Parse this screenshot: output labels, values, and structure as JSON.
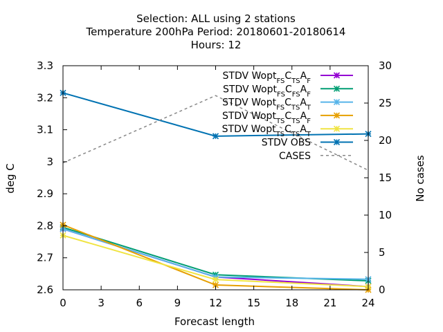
{
  "title_lines": [
    "Selection: ALL using     2 stations",
    "Temperature 200hPa    Period: 20180601-20180614",
    "Hours:  12"
  ],
  "chart_data": {
    "type": "line",
    "xlabel": "Forecast length",
    "ylabel": "deg C",
    "y2label": "No cases",
    "xlim": [
      0,
      24
    ],
    "ylim": [
      2.6,
      3.3
    ],
    "y2lim": [
      0,
      30
    ],
    "x_ticks": [
      0,
      3,
      6,
      9,
      12,
      15,
      18,
      21,
      24
    ],
    "y_ticks": [
      "2.6",
      "2.7",
      "2.8",
      "2.9",
      "3",
      "3.1",
      "3.2",
      "3.3"
    ],
    "y2_ticks": [
      "0",
      "5",
      "10",
      "15",
      "20",
      "25",
      "30"
    ],
    "grid": false,
    "legend_position": "top-right",
    "x": [
      0,
      12,
      24
    ],
    "series": [
      {
        "label_parts": [
          {
            "t": "STDV Wopt",
            "s": false
          },
          {
            "t": "FS",
            "s": true
          },
          {
            "t": "C",
            "s": false
          },
          {
            "t": "TS",
            "s": true
          },
          {
            "t": "A",
            "s": false
          },
          {
            "t": "F",
            "s": true
          }
        ],
        "color": "#9400d3",
        "axis": "y",
        "values": [
          2.79,
          2.64,
          2.61
        ]
      },
      {
        "label_parts": [
          {
            "t": "STDV Wopt",
            "s": false
          },
          {
            "t": "FS",
            "s": true
          },
          {
            "t": "C",
            "s": false
          },
          {
            "t": "FS",
            "s": true
          },
          {
            "t": "A",
            "s": false
          },
          {
            "t": "F",
            "s": true
          }
        ],
        "color": "#009e73",
        "axis": "y",
        "values": [
          2.795,
          2.647,
          2.628
        ]
      },
      {
        "label_parts": [
          {
            "t": "STDV Wopt",
            "s": false
          },
          {
            "t": "FS",
            "s": true
          },
          {
            "t": "C",
            "s": false
          },
          {
            "t": "TS",
            "s": true
          },
          {
            "t": "A",
            "s": false
          },
          {
            "t": "T",
            "s": true
          }
        ],
        "color": "#56b4e9",
        "axis": "y",
        "values": [
          2.79,
          2.64,
          2.633
        ]
      },
      {
        "label_parts": [
          {
            "t": "STDV Wopt",
            "s": false
          },
          {
            "t": "TS",
            "s": true
          },
          {
            "t": "C",
            "s": false
          },
          {
            "t": "TS",
            "s": true
          },
          {
            "t": "A",
            "s": false
          },
          {
            "t": "F",
            "s": true
          }
        ],
        "color": "#e69f00",
        "axis": "y",
        "values": [
          2.803,
          2.615,
          2.6
        ]
      },
      {
        "label_parts": [
          {
            "t": "STDV Wopt",
            "s": false
          },
          {
            "t": "TS",
            "s": true
          },
          {
            "t": "C",
            "s": false
          },
          {
            "t": "TS",
            "s": true
          },
          {
            "t": "A",
            "s": false
          },
          {
            "t": "T",
            "s": true
          }
        ],
        "color": "#f0e442",
        "axis": "y",
        "values": [
          2.77,
          2.632,
          2.61
        ]
      },
      {
        "label_parts": [
          {
            "t": "STDV OBS",
            "s": false
          }
        ],
        "color": "#0072b2",
        "axis": "y",
        "values": [
          3.215,
          3.08,
          3.087
        ]
      },
      {
        "label_parts": [
          {
            "t": "CASES",
            "s": false
          }
        ],
        "color": "#888888",
        "axis": "y2",
        "dashed": true,
        "no_markers": true,
        "values": [
          17,
          26,
          16
        ]
      }
    ]
  }
}
